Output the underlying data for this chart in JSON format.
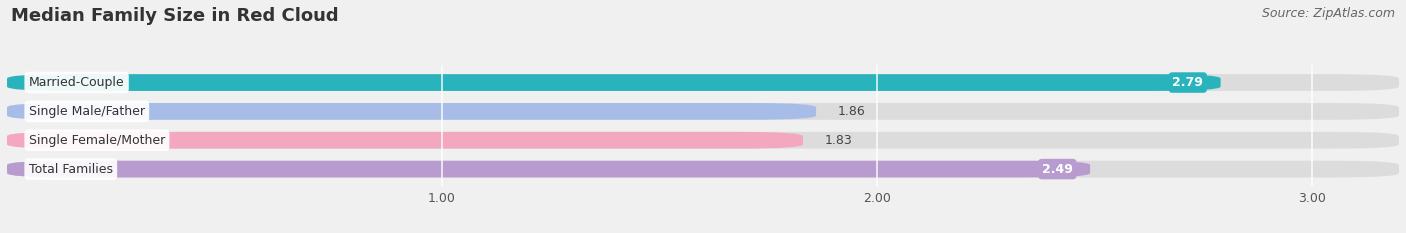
{
  "title": "Median Family Size in Red Cloud",
  "source": "Source: ZipAtlas.com",
  "categories": [
    "Married-Couple",
    "Single Male/Father",
    "Single Female/Mother",
    "Total Families"
  ],
  "values": [
    2.79,
    1.86,
    1.83,
    2.49
  ],
  "bar_colors": [
    "#29b3bc",
    "#a8bce8",
    "#f4a8c0",
    "#b89cd0"
  ],
  "value_label_colors": [
    "white",
    "#555555",
    "#555555",
    "white"
  ],
  "xlim_max": 3.2,
  "xticks": [
    1.0,
    2.0,
    3.0
  ],
  "background_color": "#f0f0f0",
  "bar_bg_color": "#dcdcdc",
  "title_fontsize": 13,
  "source_fontsize": 9,
  "label_fontsize": 9,
  "value_fontsize": 9
}
